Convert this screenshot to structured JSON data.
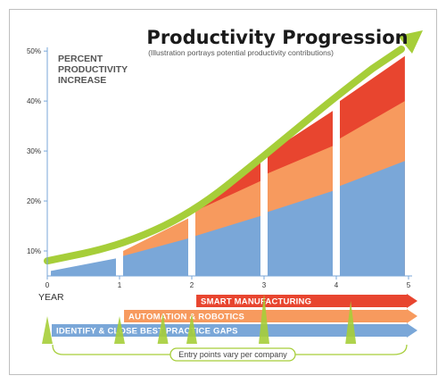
{
  "chart_data": {
    "type": "area",
    "title": "Productivity Progression",
    "subtitle": "(Illustration portrays potential productivity contributions)",
    "ylabel": [
      "PERCENT",
      "PRODUCTIVITY",
      "INCREASE"
    ],
    "xlabel": "YEAR",
    "x_ticks": [
      "0",
      "1",
      "2",
      "3",
      "4",
      "5"
    ],
    "y_ticks": [
      "10%",
      "20%",
      "30%",
      "40%",
      "50%"
    ],
    "xlim": [
      0,
      5
    ],
    "ylim": [
      5,
      52
    ],
    "series": [
      {
        "name": "IDENTIFY & CLOSE BEST PRACTICE GAPS",
        "color": "#7aa7d8",
        "start_year": 0.05,
        "points": [
          [
            0.05,
            6
          ],
          [
            0.95,
            8.5
          ],
          [
            1.05,
            9
          ],
          [
            1.95,
            12.5
          ],
          [
            2.05,
            13
          ],
          [
            2.95,
            17
          ],
          [
            3.05,
            17.8
          ],
          [
            3.95,
            22
          ],
          [
            4.05,
            23
          ],
          [
            4.95,
            28
          ]
        ]
      },
      {
        "name": "AUTOMATION & ROBOTICS",
        "color": "#f79a5e",
        "start_year": 1.05,
        "points": [
          [
            1.05,
            10
          ],
          [
            1.95,
            16.5
          ],
          [
            2.05,
            18
          ],
          [
            2.95,
            24
          ],
          [
            3.05,
            25.5
          ],
          [
            3.95,
            31
          ],
          [
            4.05,
            32.5
          ],
          [
            4.95,
            40
          ]
        ]
      },
      {
        "name": "SMART MANUFACTURING",
        "color": "#e8452f",
        "start_year": 2.05,
        "points": [
          [
            2.05,
            18
          ],
          [
            2.95,
            28
          ],
          [
            3.05,
            29.5
          ],
          [
            3.95,
            38
          ],
          [
            4.05,
            40
          ],
          [
            4.95,
            49
          ]
        ]
      }
    ],
    "trend_arrow": {
      "color": "#a6ce39",
      "points": [
        [
          0,
          8
        ],
        [
          1,
          11
        ],
        [
          2,
          17.5
        ],
        [
          3,
          29
        ],
        [
          4,
          41
        ],
        [
          5,
          52
        ]
      ]
    },
    "entry_markers": [
      0,
      1,
      1.6,
      2,
      3,
      4.2
    ],
    "entry_note": "Entry points vary per company"
  }
}
